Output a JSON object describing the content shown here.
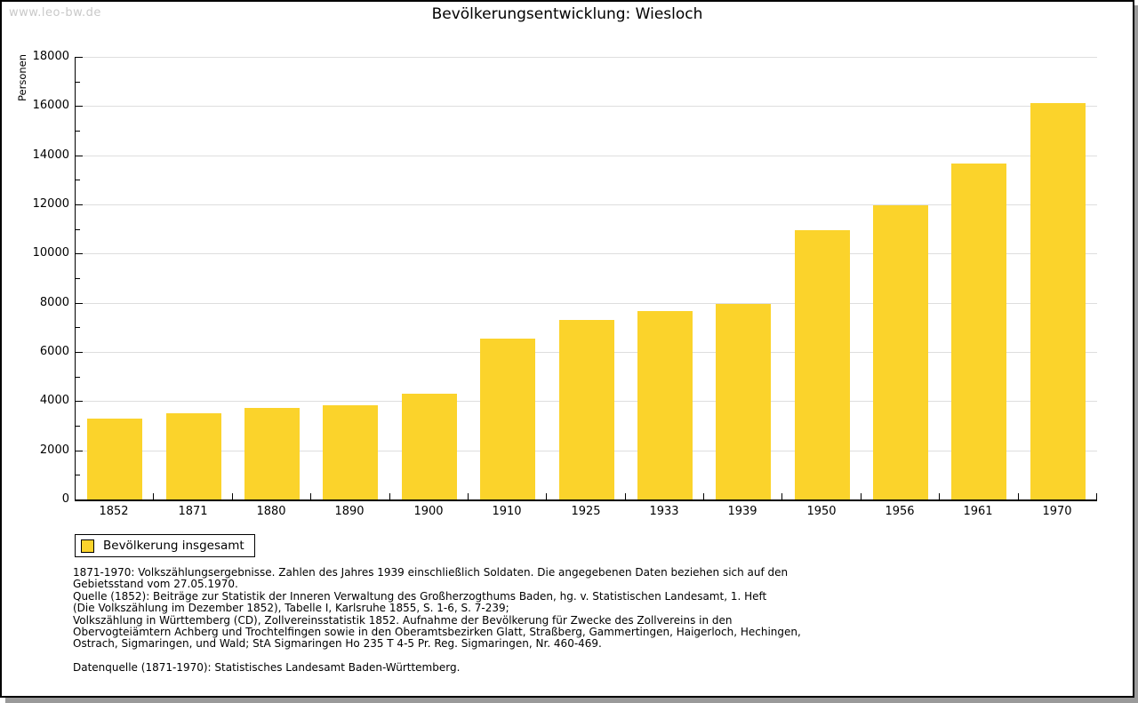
{
  "watermark": "www.leo-bw.de",
  "title": "Bevölkerungsentwicklung: Wiesloch",
  "legend": {
    "label": "Bevölkerung insgesamt",
    "swatch_color": "#FBD32B"
  },
  "chart_data": {
    "type": "bar",
    "title": "Bevölkerungsentwicklung: Wiesloch",
    "xlabel": "",
    "ylabel": "Personen",
    "categories": [
      "1852",
      "1871",
      "1880",
      "1890",
      "1900",
      "1910",
      "1925",
      "1933",
      "1939",
      "1950",
      "1956",
      "1961",
      "1970"
    ],
    "series": [
      {
        "name": "Bevölkerung insgesamt",
        "color": "#FBD32B",
        "values": [
          3290,
          3500,
          3730,
          3820,
          4310,
          6540,
          7300,
          7670,
          7950,
          10940,
          11950,
          13650,
          16110
        ]
      }
    ],
    "ylim": [
      0,
      18000
    ],
    "ytick_step": 2000,
    "yminor_step": 1000,
    "grid": "horizontal-major",
    "gridline_color": "#dedede",
    "legend_position": "below-left"
  },
  "footnotes": [
    "1871-1970: Volkszählungsergebnisse. Zahlen des Jahres 1939 einschließlich Soldaten. Die angegebenen Daten beziehen sich auf den",
    "Gebietsstand vom 27.05.1970.",
    "Quelle (1852): Beiträge zur Statistik der Inneren Verwaltung des Großherzogthums Baden, hg. v. Statistischen Landesamt, 1. Heft",
    "(Die Volkszählung im Dezember 1852), Tabelle I, Karlsruhe 1855, S. 1-6, S. 7-239;",
    "Volkszählung in Württemberg (CD), Zollvereinsstatistik 1852. Aufnahme der Bevölkerung für Zwecke des Zollvereins in den",
    "Obervogteiämtern Achberg und Trochtelfingen sowie in den Oberamtsbezirken Glatt, Straßberg, Gammertingen, Haigerloch, Hechingen,",
    "Ostrach, Sigmaringen, und Wald; StA Sigmaringen Ho 235 T 4-5 Pr. Reg. Sigmaringen, Nr. 460-469.",
    "",
    "Datenquelle (1871-1970): Statistisches Landesamt Baden-Württemberg."
  ]
}
